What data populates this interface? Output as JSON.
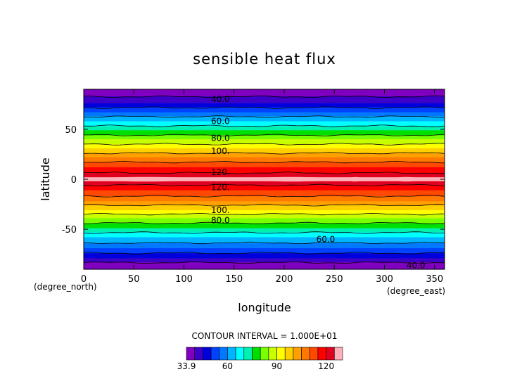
{
  "chart_data": {
    "type": "heatmap",
    "title": "sensible heat flux",
    "xlabel": "longitude",
    "ylabel": "latitude",
    "x_unit": "(degree_east)",
    "y_unit": "(degree_north)",
    "xlim": [
      0,
      360
    ],
    "ylim": [
      -90,
      90
    ],
    "x_ticks": [
      0,
      50,
      100,
      150,
      200,
      250,
      300,
      350
    ],
    "y_ticks": [
      -50,
      0,
      50
    ],
    "contour_interval_text": "CONTOUR INTERVAL = 1.000E+01",
    "contour_labels": [
      {
        "text": "40.0",
        "lon": 127,
        "lat": 80
      },
      {
        "text": "60.0",
        "lon": 127,
        "lat": 58
      },
      {
        "text": "80.0",
        "lon": 127,
        "lat": 41
      },
      {
        "text": "100.",
        "lon": 127,
        "lat": 28
      },
      {
        "text": "120.",
        "lon": 127,
        "lat": 7
      },
      {
        "text": "120.",
        "lon": 127,
        "lat": -8
      },
      {
        "text": "100.",
        "lon": 127,
        "lat": -31
      },
      {
        "text": "80.0",
        "lon": 127,
        "lat": -41
      },
      {
        "text": "60.0",
        "lon": 232,
        "lat": -60
      },
      {
        "text": "40.0",
        "lon": 322,
        "lat": -86
      }
    ],
    "levels": [
      33.9,
      40,
      45,
      50,
      55,
      60,
      65,
      70,
      75,
      80,
      85,
      90,
      95,
      100,
      105,
      110,
      115,
      120,
      125,
      130
    ],
    "colorbar_ticks": [
      33.9,
      60,
      90,
      120
    ],
    "colormap": [
      "#8000c0",
      "#3d00c8",
      "#0000dd",
      "#0042ff",
      "#0078ff",
      "#00b4ff",
      "#00ffff",
      "#00f0b0",
      "#00e000",
      "#78ff00",
      "#c8ff00",
      "#ffff00",
      "#ffcf00",
      "#ffa000",
      "#ff7800",
      "#ff4800",
      "#ff0000",
      "#e00020",
      "#ffb0b8"
    ],
    "zonal_mean_profile": {
      "lat": [
        -90,
        -85,
        -80,
        -75,
        -70,
        -65,
        -60,
        -55,
        -50,
        -45,
        -40,
        -35,
        -30,
        -25,
        -20,
        -15,
        -10,
        -5,
        0,
        5,
        10,
        15,
        20,
        25,
        30,
        35,
        40,
        45,
        50,
        55,
        60,
        65,
        70,
        75,
        80,
        85,
        90
      ],
      "value": [
        35,
        38,
        44,
        49,
        54,
        59,
        63,
        68,
        74,
        79,
        84,
        90,
        96,
        101,
        107,
        112,
        116,
        121,
        127,
        121,
        117,
        112,
        107,
        101,
        96,
        90,
        85,
        79,
        74,
        68,
        63,
        57,
        52,
        46,
        42,
        38,
        35
      ]
    }
  }
}
